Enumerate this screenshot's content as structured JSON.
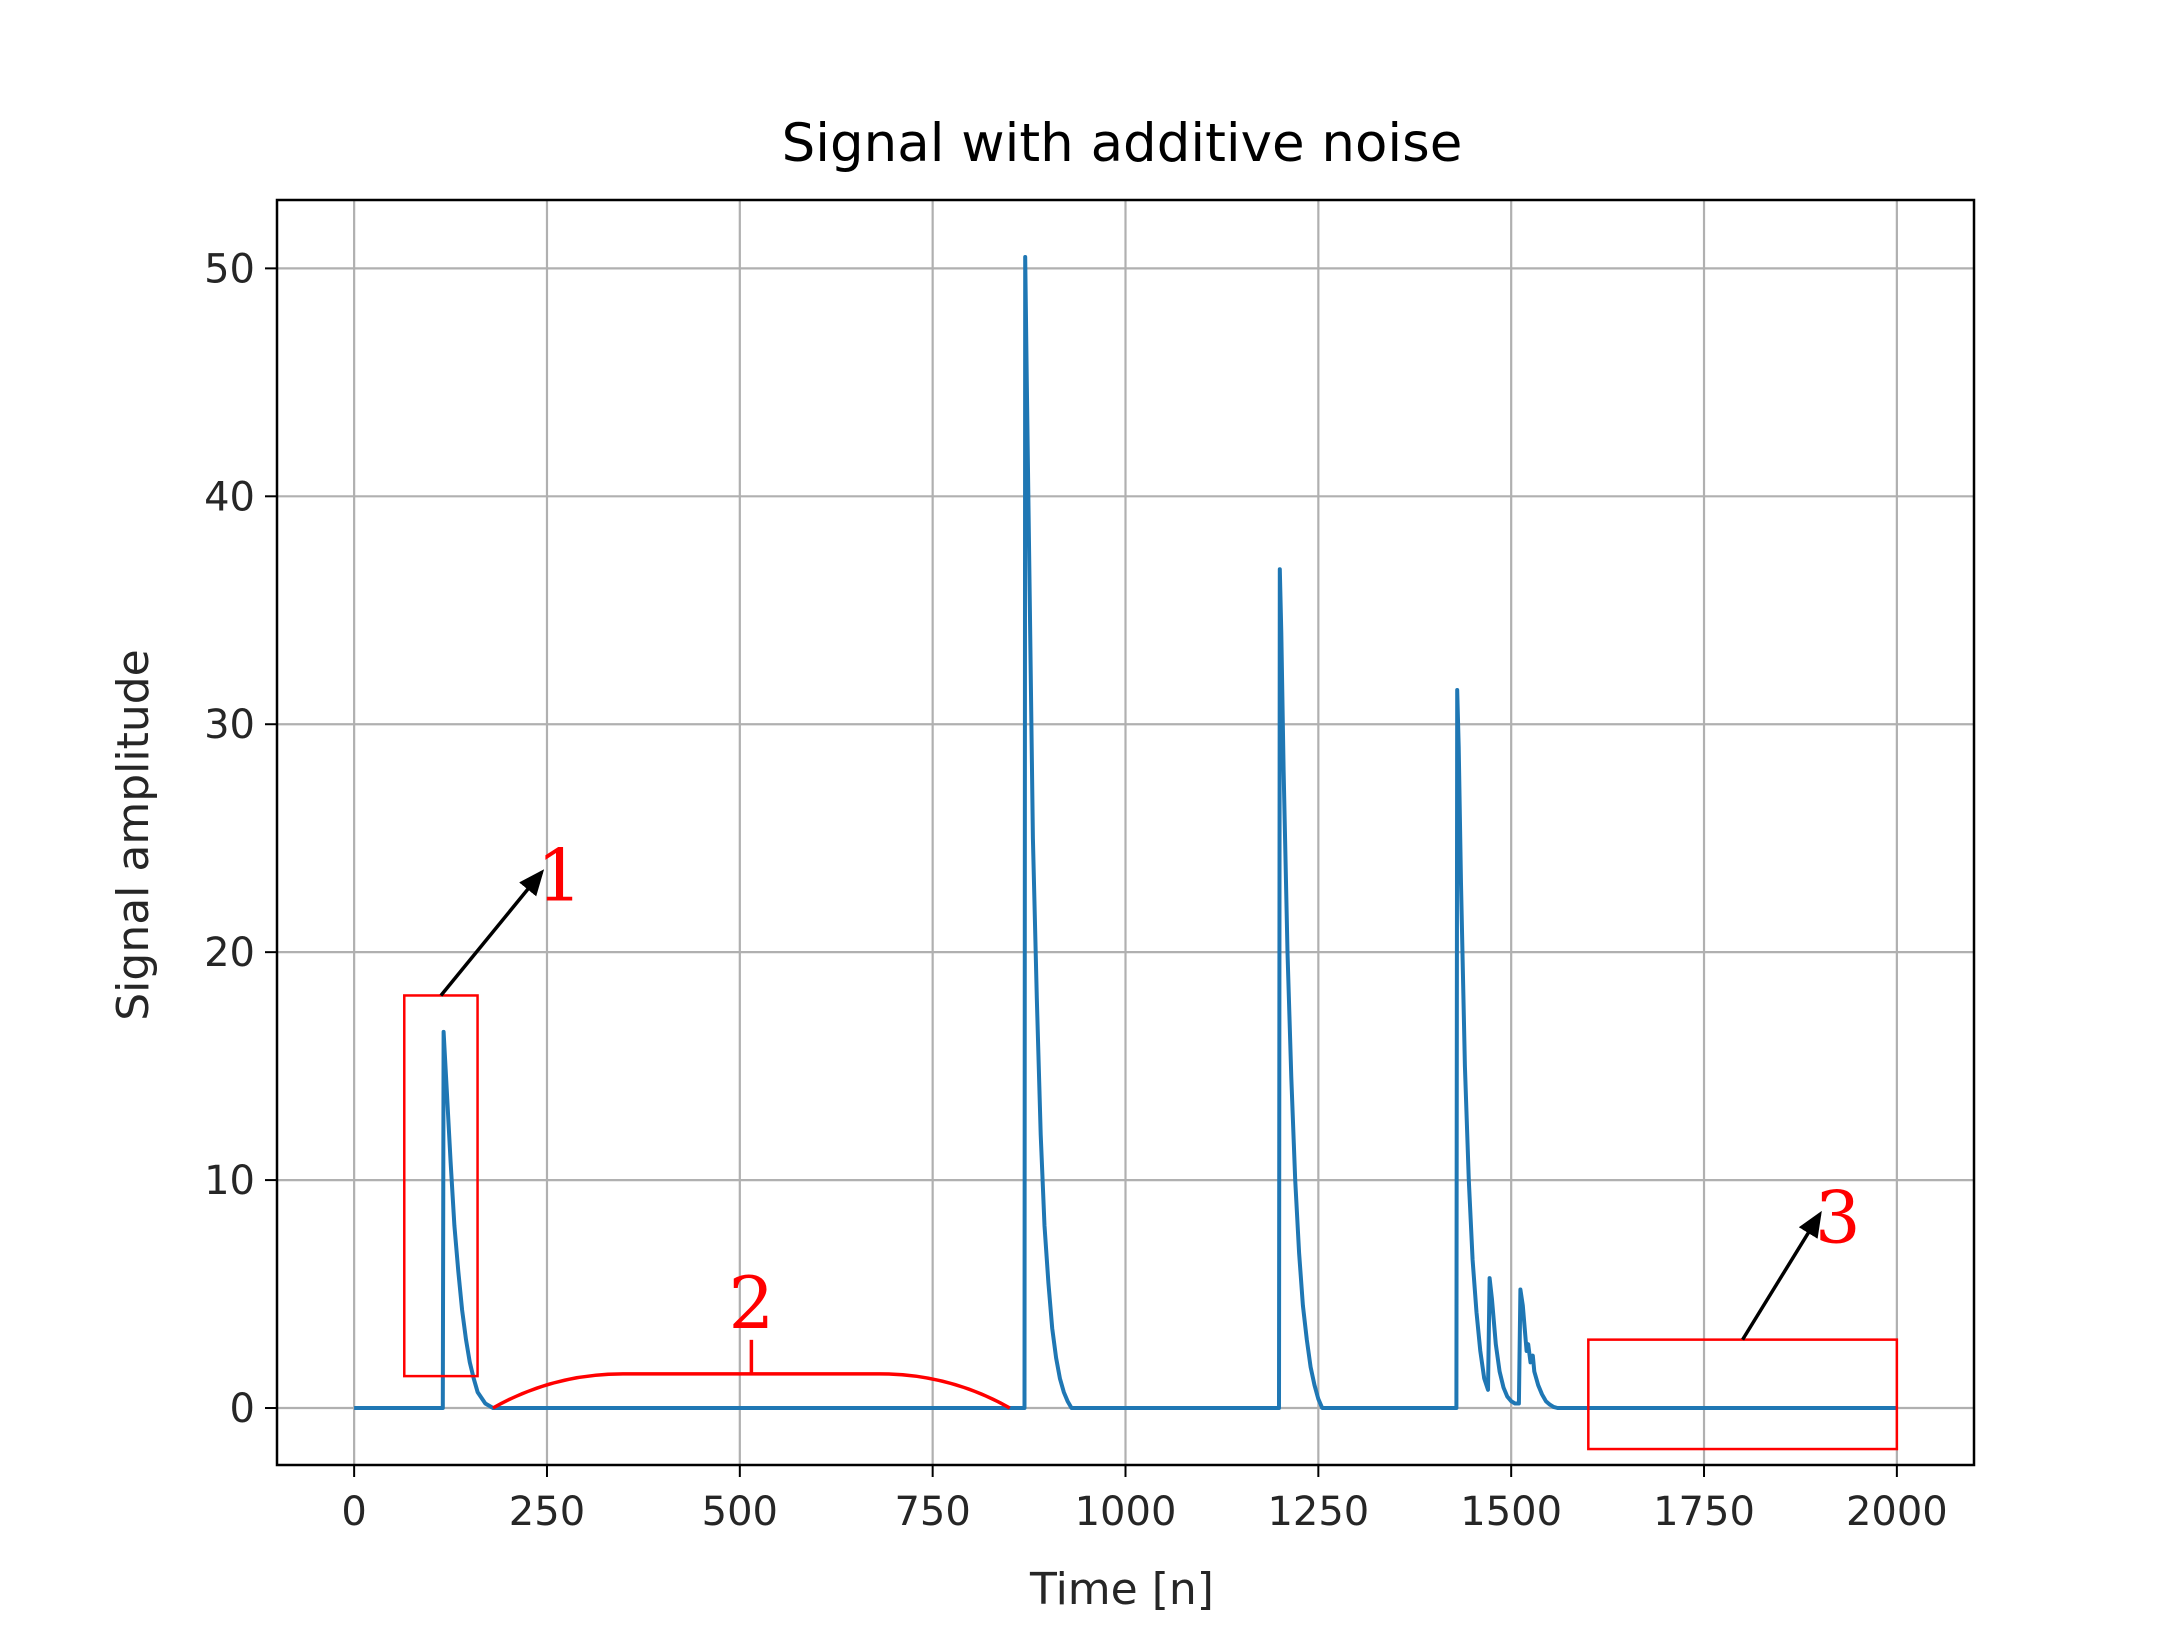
{
  "chart_data": {
    "type": "line",
    "title": "Signal with additive noise",
    "xlabel": "Time [n]",
    "ylabel": "Signal amplitude",
    "xlim": [
      -100,
      2100
    ],
    "ylim": [
      -2.5,
      53
    ],
    "xticks": [
      0,
      250,
      500,
      750,
      1000,
      1250,
      1500,
      1750,
      2000
    ],
    "xtick_labels": [
      "0",
      "250",
      "500",
      "750",
      "1000",
      "1250",
      "1500",
      "1750",
      "2000"
    ],
    "yticks": [
      0,
      10,
      20,
      30,
      40,
      50
    ],
    "ytick_labels": [
      "0",
      "10",
      "20",
      "30",
      "40",
      "50"
    ],
    "grid": true,
    "line_color": "#1f77b4",
    "annotation_color": "#ff0000",
    "series": [
      {
        "x": [
          0,
          115,
          116,
          120,
          125,
          130,
          135,
          140,
          145,
          150,
          155,
          160,
          170,
          180,
          190,
          200,
          300,
          400,
          500,
          600,
          700,
          800,
          869,
          870,
          872,
          876,
          880,
          885,
          890,
          895,
          900,
          905,
          910,
          915,
          920,
          925,
          930,
          1000,
          1100,
          1199,
          1200,
          1202,
          1205,
          1210,
          1215,
          1220,
          1225,
          1230,
          1235,
          1240,
          1245,
          1250,
          1255,
          1300,
          1400,
          1429,
          1430,
          1432,
          1435,
          1440,
          1445,
          1450,
          1455,
          1460,
          1465,
          1470,
          1472,
          1475,
          1480,
          1485,
          1490,
          1495,
          1500,
          1505,
          1510,
          1512,
          1515,
          1520,
          1522,
          1525,
          1528,
          1530,
          1535,
          1540,
          1545,
          1550,
          1555,
          1560,
          1570,
          1580,
          1600,
          1700,
          1800,
          1900,
          2000
        ],
        "y": [
          0,
          0,
          16.5,
          14,
          10.8,
          8,
          6,
          4.3,
          3,
          2,
          1.3,
          0.7,
          0.2,
          0,
          0,
          0,
          0,
          0,
          0,
          0,
          0,
          0,
          0,
          50.5,
          45,
          35,
          25,
          18,
          12,
          8,
          5.5,
          3.5,
          2.2,
          1.3,
          0.7,
          0.3,
          0,
          0,
          0,
          0,
          36.8,
          34,
          28,
          20,
          14.5,
          10,
          6.8,
          4.5,
          3,
          1.8,
          1,
          0.4,
          0,
          0,
          0,
          0,
          31.5,
          29,
          23,
          15,
          10,
          6.5,
          4.2,
          2.5,
          1.3,
          0.8,
          5.7,
          4.8,
          2.8,
          1.6,
          0.9,
          0.5,
          0.3,
          0.2,
          0.2,
          5.2,
          4.5,
          2.5,
          2.8,
          2,
          2.3,
          1.6,
          1,
          0.6,
          0.3,
          0.15,
          0.05,
          0,
          0,
          0,
          0,
          0,
          0,
          0,
          0
        ]
      }
    ],
    "annotations": [
      {
        "label": "1",
        "type": "box-with-arrow",
        "box_x": [
          65,
          160
        ],
        "box_y": [
          1.4,
          18.1
        ],
        "arrow_to": [
          243,
          23.5
        ]
      },
      {
        "label": "2",
        "type": "brace",
        "x_range": [
          180,
          850
        ],
        "y": 1.5
      },
      {
        "label": "3",
        "type": "box-with-arrow",
        "box_x": [
          1600,
          2000
        ],
        "box_y": [
          -1.8,
          3.0
        ],
        "arrow_to": [
          1900,
          8.5
        ]
      }
    ]
  }
}
